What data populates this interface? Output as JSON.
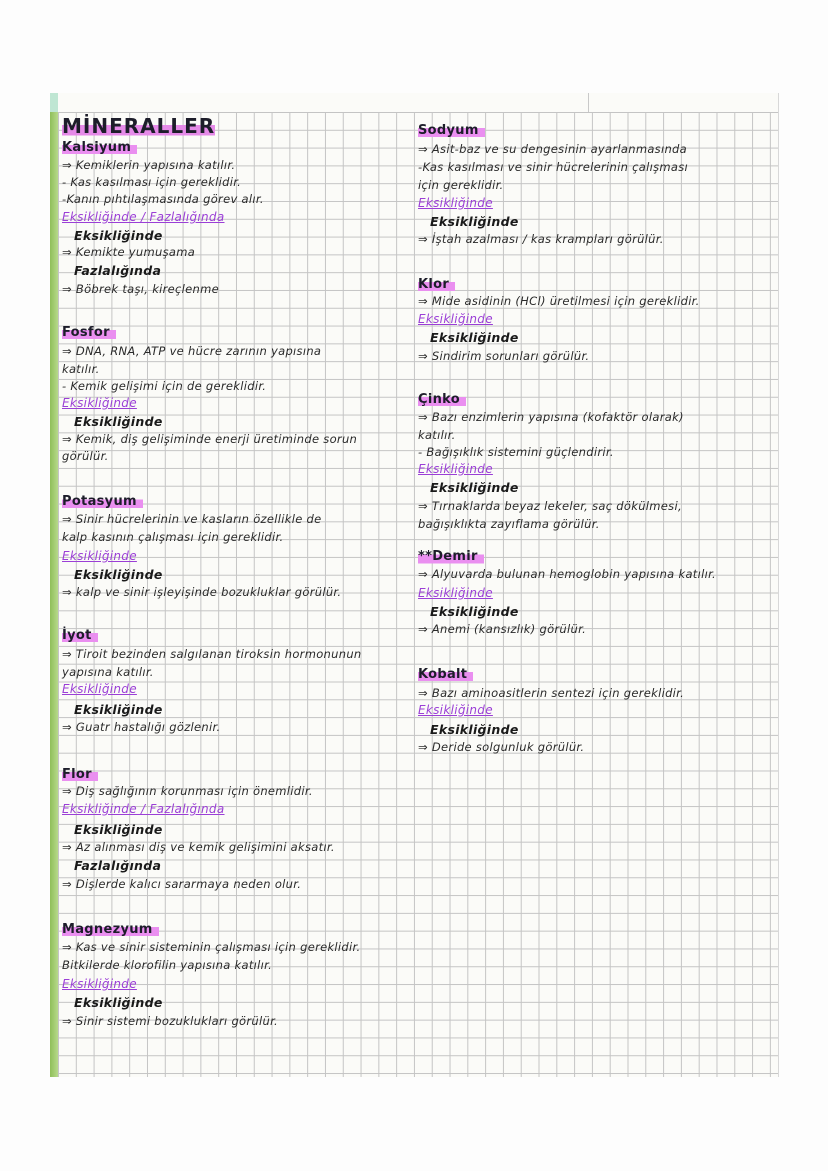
{
  "title": "MİNERALLER",
  "colors": {
    "highlight": "#ea8ff0",
    "cue_ink": "#9b3fd6",
    "ink": "#222222",
    "margin_green": "#8fbf5a",
    "grid": "#c4c4c4"
  },
  "left_column": [
    {
      "kind": "mineral",
      "text": "Kalsiyum"
    },
    {
      "kind": "text",
      "text": "⇒ Kemiklerin yapısına katılır."
    },
    {
      "kind": "text",
      "text": " - Kas kasılması için gereklidir."
    },
    {
      "kind": "text",
      "text": " -Kanın pıhtılaşmasında görev alır."
    },
    {
      "kind": "cue",
      "text": "Eksikliğinde / Fazlalığında"
    },
    {
      "kind": "sub",
      "text": "Eksikliğinde"
    },
    {
      "kind": "text",
      "text": "⇒ Kemikte yumuşama"
    },
    {
      "kind": "sub",
      "text": "Fazlalığında"
    },
    {
      "kind": "text",
      "text": "⇒ Böbrek taşı, kireçlenme"
    },
    {
      "kind": "mineral",
      "text": "Fosfor"
    },
    {
      "kind": "text",
      "text": "⇒ DNA, RNA, ATP ve hücre zarının   yapısına"
    },
    {
      "kind": "text",
      "text": "katılır."
    },
    {
      "kind": "text",
      "text": " - Kemik gelişimi için de gereklidir."
    },
    {
      "kind": "cue",
      "text": "Eksikliğinde"
    },
    {
      "kind": "sub",
      "text": "Eksikliğinde"
    },
    {
      "kind": "text",
      "text": "⇒ Kemik, diş gelişiminde enerji üretiminde  sorun"
    },
    {
      "kind": "text",
      "text": "görülür."
    },
    {
      "kind": "mineral",
      "text": "Potasyum"
    },
    {
      "kind": "text",
      "text": "⇒ Sinir hücrelerinin  ve  kasların  özellikle de"
    },
    {
      "kind": "text",
      "text": "kalp kasının  çalışması için gereklidir."
    },
    {
      "kind": "cue",
      "text": "Eksikliğinde"
    },
    {
      "kind": "sub",
      "text": "Eksikliğinde"
    },
    {
      "kind": "text",
      "text": "⇒ kalp ve sinir  işleyişinde bozukluklar görülür."
    },
    {
      "kind": "mineral",
      "text": "İyot"
    },
    {
      "kind": "text",
      "text": "⇒ Tiroit bezinden salgılanan tiroksin hormonunun"
    },
    {
      "kind": "text",
      "text": "yapısına katılır."
    },
    {
      "kind": "cue",
      "text": "Eksikliğinde"
    },
    {
      "kind": "sub",
      "text": "Eksikliğinde"
    },
    {
      "kind": "text",
      "text": "⇒ Guatr  hastalığı  gözlenir."
    },
    {
      "kind": "mineral",
      "text": "Flor"
    },
    {
      "kind": "text",
      "text": "⇒ Diş sağlığının  korunması için önemlidir."
    },
    {
      "kind": "cue",
      "text": "Eksikliğinde / Fazlalığında"
    },
    {
      "kind": "sub",
      "text": "Eksikliğinde"
    },
    {
      "kind": "text",
      "text": "⇒ Az alınması  diş ve  kemik gelişimini aksatır."
    },
    {
      "kind": "sub",
      "text": "Fazlalığında"
    },
    {
      "kind": "text",
      "text": "⇒ Dişlerde  kalıcı  sararmaya  neden  olur."
    },
    {
      "kind": "mineral",
      "text": "Magnezyum"
    },
    {
      "kind": "text",
      "text": "⇒ Kas ve sinir sisteminin çalışması  için gereklidir."
    },
    {
      "kind": "text",
      "text": "Bitkilerde  klorofilin  yapısına  katılır."
    },
    {
      "kind": "cue",
      "text": "Eksikliğinde"
    },
    {
      "kind": "sub",
      "text": "Eksikliğinde"
    },
    {
      "kind": "text",
      "text": "⇒ Sinir sistemi  bozuklukları   görülür."
    }
  ],
  "right_column": [
    {
      "kind": "mineral",
      "text": "Sodyum"
    },
    {
      "kind": "text",
      "text": "⇒ Asit-baz ve  su  dengesinin  ayarlanmasında"
    },
    {
      "kind": "text",
      "text": " -Kas kasılması  ve  sinir  hücrelerinin  çalışması"
    },
    {
      "kind": "text",
      "text": "için  gereklidir."
    },
    {
      "kind": "cue",
      "text": "Eksikliğinde"
    },
    {
      "kind": "sub",
      "text": "Eksikliğinde"
    },
    {
      "kind": "text",
      "text": "⇒ İştah  azalması  / kas  krampları  görülür."
    },
    {
      "kind": "mineral",
      "text": "Klor"
    },
    {
      "kind": "text",
      "text": "⇒ Mide  asidinin  (HCl)  üretilmesi  için gereklidir."
    },
    {
      "kind": "cue",
      "text": "Eksikliğinde"
    },
    {
      "kind": "sub",
      "text": "Eksikliğinde"
    },
    {
      "kind": "text",
      "text": "⇒ Sindirim  sorunları  görülür."
    },
    {
      "kind": "mineral",
      "text": "Çinko"
    },
    {
      "kind": "text",
      "text": "⇒ Bazı  enzimlerin  yapısına  (kofaktör  olarak)"
    },
    {
      "kind": "text",
      "text": "katılır."
    },
    {
      "kind": "text",
      "text": " - Bağışıklık  sistemini  güçlendirir."
    },
    {
      "kind": "cue",
      "text": "Eksikliğinde"
    },
    {
      "kind": "sub",
      "text": "Eksikliğinde"
    },
    {
      "kind": "text",
      "text": "⇒ Tırnaklarda  beyaz  lekeler,  saç  dökülmesi,"
    },
    {
      "kind": "text",
      "text": "bağışıklıkta zayıflama   görülür."
    },
    {
      "kind": "mineral",
      "text": "**Demir"
    },
    {
      "kind": "text",
      "text": " ⇒ Alyuvarda   bulunan  hemoglobin  yapısına  katılır."
    },
    {
      "kind": "cue",
      "text": "Eksikliğinde"
    },
    {
      "kind": "sub",
      "text": "Eksikliğinde"
    },
    {
      "kind": "text",
      "text": "⇒ Anemi (kansızlık)  görülür."
    },
    {
      "kind": "mineral",
      "text": "Kobalt"
    },
    {
      "kind": "text",
      "text": "⇒ Bazı  aminoasitlerin  sentezi  için  gereklidir."
    },
    {
      "kind": "cue",
      "text": "Eksikliğinde"
    },
    {
      "kind": "sub",
      "text": "Eksikliğinde"
    },
    {
      "kind": "text",
      "text": "⇒ Deride  solgunluk  görülür."
    }
  ]
}
